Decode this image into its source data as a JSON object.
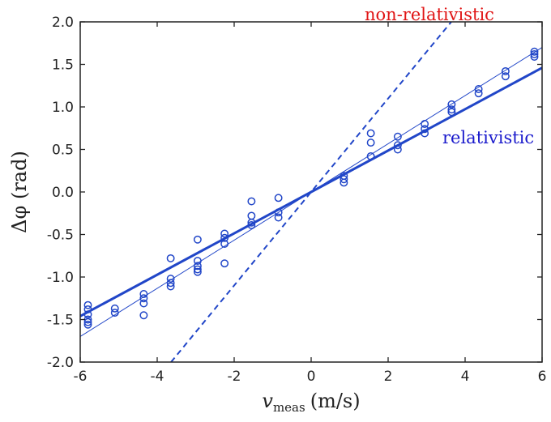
{
  "chart_data": {
    "type": "scatter",
    "xlabel": "v",
    "xlabel_sub": "meas",
    "xlabel_unit": "(m/s)",
    "ylabel": "Δφ (rad)",
    "xlim": [
      -6,
      6
    ],
    "ylim": [
      -2.0,
      2.0
    ],
    "xticks": [
      -6,
      -4,
      -2,
      0,
      2,
      4,
      6
    ],
    "yticks": [
      -2.0,
      -1.5,
      -1.0,
      -0.5,
      0.0,
      0.5,
      1.0,
      1.5,
      2.0
    ],
    "grid": false,
    "colors": {
      "data": "#2146c8",
      "nonrel_label": "#e01515",
      "rel_label": "#1a1acc",
      "axis": "#222222"
    },
    "annotations": [
      {
        "id": "non-relativistic",
        "text": "non-relativistic",
        "x": 3.5,
        "y": 2.0
      },
      {
        "id": "relativistic",
        "text": "relativistic",
        "x": 3.4,
        "y": 0.5
      }
    ],
    "lines": [
      {
        "id": "non-relativistic-line",
        "style": "dashed",
        "width": 2,
        "x": [
          -3.64,
          3.64
        ],
        "y": [
          -2.0,
          2.0
        ]
      },
      {
        "id": "relativistic-line",
        "style": "solid",
        "width": 3,
        "x": [
          -6,
          6
        ],
        "y": [
          -1.46,
          1.46
        ]
      },
      {
        "id": "fit-line",
        "style": "solid",
        "width": 1,
        "x": [
          -6,
          6
        ],
        "y": [
          -1.7,
          1.7
        ]
      }
    ],
    "points": {
      "x": [
        -5.8,
        -5.8,
        -5.8,
        -5.8,
        -5.8,
        -5.8,
        -5.1,
        -5.1,
        -4.35,
        -4.35,
        -4.35,
        -4.35,
        -3.65,
        -3.65,
        -3.65,
        -3.65,
        -2.95,
        -2.95,
        -2.95,
        -2.95,
        -2.95,
        -2.25,
        -2.25,
        -2.25,
        -2.25,
        -1.55,
        -1.55,
        -1.55,
        -1.55,
        -0.85,
        -0.85,
        -0.85,
        0.85,
        0.85,
        0.85,
        1.55,
        1.55,
        1.55,
        2.25,
        2.25,
        2.25,
        2.95,
        2.95,
        2.95,
        3.65,
        3.65,
        3.65,
        4.35,
        4.35,
        5.05,
        5.05,
        5.8,
        5.8,
        5.8
      ],
      "y": [
        -1.33,
        -1.38,
        -1.44,
        -1.5,
        -1.53,
        -1.56,
        -1.37,
        -1.42,
        -1.2,
        -1.25,
        -1.31,
        -1.45,
        -0.78,
        -1.02,
        -1.07,
        -1.11,
        -0.56,
        -0.81,
        -0.87,
        -0.91,
        -0.94,
        -0.49,
        -0.54,
        -0.61,
        -0.84,
        -0.11,
        -0.28,
        -0.36,
        -0.39,
        -0.07,
        -0.24,
        -0.3,
        0.11,
        0.15,
        0.19,
        0.69,
        0.58,
        0.42,
        0.65,
        0.55,
        0.5,
        0.8,
        0.74,
        0.69,
        1.03,
        0.97,
        0.94,
        1.21,
        1.16,
        1.42,
        1.36,
        1.65,
        1.62,
        1.59
      ]
    }
  }
}
